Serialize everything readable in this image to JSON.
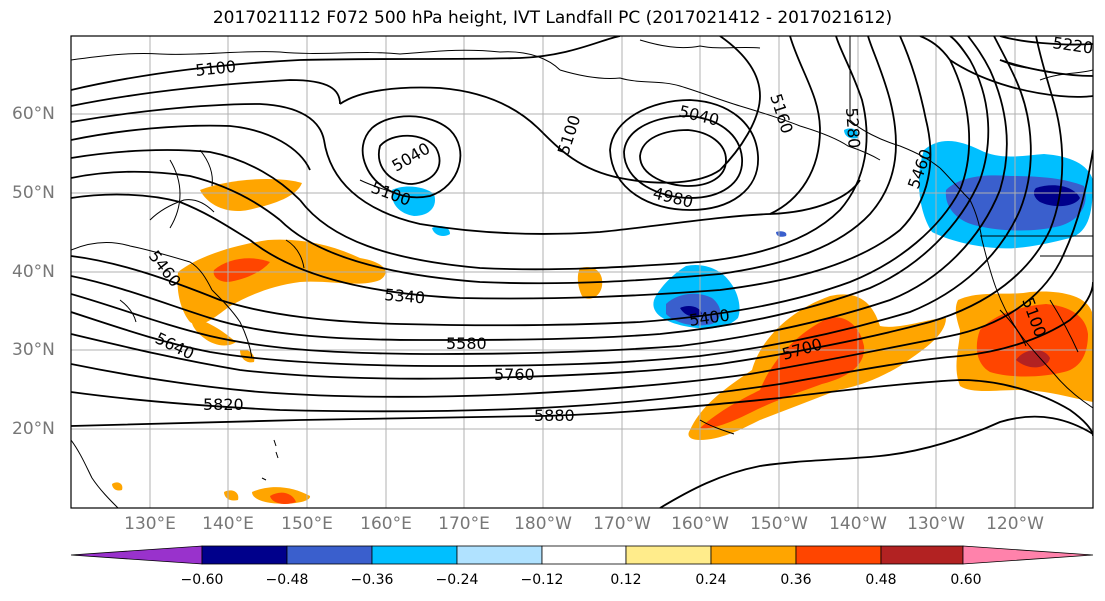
{
  "title": "2017021112 F072 500 hPa height, IVT Landfall PC (2017021412 - 2017021612)",
  "lat_labels": [
    "60°N",
    "50°N",
    "40°N",
    "30°N",
    "20°N"
  ],
  "lon_labels": [
    "130°E",
    "140°E",
    "150°E",
    "160°E",
    "170°E",
    "180°W",
    "170°W",
    "160°W",
    "150°W",
    "140°W",
    "130°W",
    "120°W"
  ],
  "contour_labels": [
    "5100",
    "5040",
    "5100",
    "5100",
    "5040",
    "4980",
    "5460",
    "5640",
    "5340",
    "5580",
    "5760",
    "5820",
    "5880",
    "5400",
    "5700",
    "5220",
    "5160",
    "5280",
    "5460",
    "5100"
  ],
  "colorbar": {
    "ticks": [
      "−0.60",
      "−0.48",
      "−0.36",
      "−0.24",
      "−0.12",
      "0.12",
      "0.24",
      "0.36",
      "0.48",
      "0.60"
    ],
    "colors": [
      "#9932cc",
      "#00008b",
      "#3a5fcd",
      "#00bfff",
      "#b0e2ff",
      "#ffffff",
      "#ffec8b",
      "#ffa500",
      "#ff4500",
      "#b22222",
      "#ff82ab"
    ]
  },
  "colors": {
    "contour": "#000000",
    "grid": "#b0b0b0",
    "coast": "#000000",
    "axis_label": "#777777"
  }
}
